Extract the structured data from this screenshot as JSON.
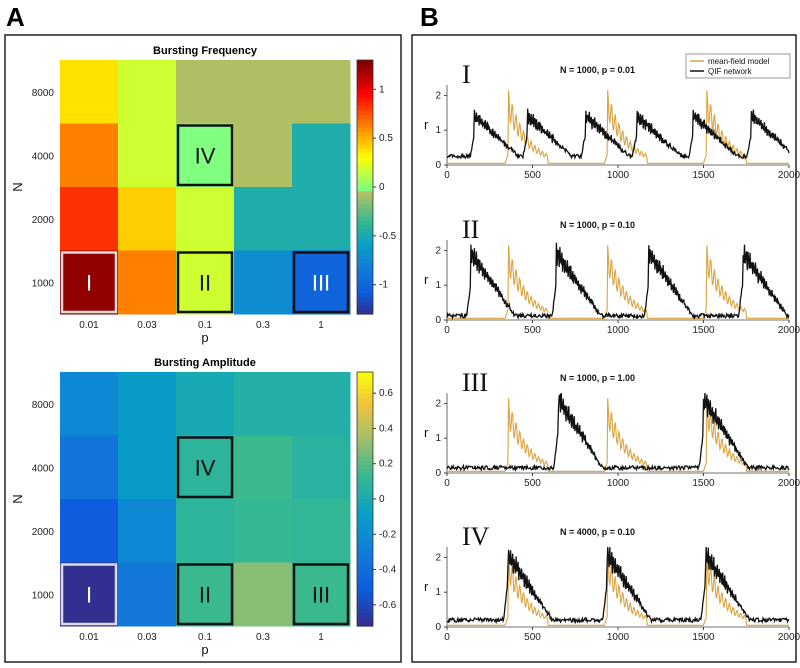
{
  "panels": {
    "A": "A",
    "B": "B"
  },
  "chart_data": [
    {
      "type": "heatmap",
      "title": "Bursting Frequency",
      "xlabel": "p",
      "ylabel": "N",
      "x_categories": [
        "0.01",
        "0.03",
        "0.1",
        "0.3",
        "1"
      ],
      "y_categories": [
        "8000",
        "4000",
        "2000",
        "1000"
      ],
      "values": [
        [
          0.4,
          0.2,
          -0.05,
          -0.05,
          -0.05
        ],
        [
          0.65,
          0.2,
          0.0,
          -0.05,
          -0.45
        ],
        [
          0.85,
          0.45,
          0.2,
          -0.45,
          -0.45
        ],
        [
          1.25,
          0.65,
          0.2,
          -0.7,
          -1.0
        ]
      ],
      "colorbar": {
        "min": -1.3,
        "max": 1.3,
        "ticks": [
          "1",
          "0.5",
          "0",
          "-0.5",
          "-1"
        ],
        "tick_values": [
          1,
          0.5,
          0,
          -0.5,
          -1
        ]
      },
      "boxes": [
        {
          "label": "IV",
          "row": 1,
          "col": 2,
          "border": "#111111"
        },
        {
          "label": "I",
          "row": 3,
          "col": 0,
          "border": "#dddddd"
        },
        {
          "label": "II",
          "row": 3,
          "col": 2,
          "border": "#111111"
        },
        {
          "label": "III",
          "row": 3,
          "col": 4,
          "border": "#111111"
        }
      ]
    },
    {
      "type": "heatmap",
      "title": "Bursting Amplitude",
      "xlabel": "p",
      "ylabel": "N",
      "x_categories": [
        "0.01",
        "0.03",
        "0.1",
        "0.3",
        "1"
      ],
      "y_categories": [
        "8000",
        "4000",
        "2000",
        "1000"
      ],
      "values": [
        [
          -0.22,
          -0.1,
          0.0,
          0.05,
          0.05
        ],
        [
          -0.35,
          -0.1,
          0.1,
          0.15,
          0.08
        ],
        [
          -0.5,
          -0.22,
          0.1,
          0.13,
          0.12
        ],
        [
          -0.7,
          -0.32,
          0.15,
          0.3,
          0.15
        ]
      ],
      "colorbar": {
        "min": -0.72,
        "max": 0.72,
        "ticks": [
          "0.6",
          "0.4",
          "0.2",
          "0",
          "-0.2",
          "-0.4",
          "-0.6"
        ],
        "tick_values": [
          0.6,
          0.4,
          0.2,
          0,
          -0.2,
          -0.4,
          -0.6
        ]
      },
      "boxes": [
        {
          "label": "IV",
          "row": 1,
          "col": 2,
          "border": "#111111"
        },
        {
          "label": "I",
          "row": 3,
          "col": 0,
          "border": "#dddddd"
        },
        {
          "label": "II",
          "row": 3,
          "col": 2,
          "border": "#111111"
        },
        {
          "label": "III",
          "row": 3,
          "col": 4,
          "border": "#111111"
        }
      ]
    },
    {
      "type": "line",
      "roman": "I",
      "annotation": "N = 1000, p = 0.01",
      "ylabel": "r",
      "xlim": [
        0,
        2000
      ],
      "ylim": [
        0,
        2.3
      ],
      "xticks": [
        "0",
        "500",
        "1000",
        "1500",
        "2000"
      ],
      "yticks": [
        "0",
        "1",
        "2"
      ],
      "legend": {
        "position": "top-right",
        "entries": [
          "mean-field model",
          "QIF network"
        ]
      },
      "series": [
        {
          "name": "mean-field model",
          "color": "#d9a441",
          "spikes": [
            360,
            940,
            1520
          ],
          "height": 2.1
        },
        {
          "name": "QIF network",
          "color": "#111111",
          "bursts": [
            160,
            470,
            810,
            1110,
            1440,
            1780
          ],
          "height": 1.3,
          "baseline": 0.25
        }
      ]
    },
    {
      "type": "line",
      "roman": "II",
      "annotation": "N = 1000, p = 0.10",
      "ylabel": "r",
      "xlim": [
        0,
        2000
      ],
      "ylim": [
        0,
        2.3
      ],
      "xticks": [
        "0",
        "500",
        "1000",
        "1500",
        "2000"
      ],
      "yticks": [
        "0",
        "1",
        "2"
      ],
      "series": [
        {
          "name": "mean-field model",
          "color": "#d9a441",
          "spikes": [
            360,
            940,
            1520
          ],
          "height": 2.1
        },
        {
          "name": "QIF network",
          "color": "#111111",
          "bursts": [
            140,
            640,
            1180,
            1730
          ],
          "height": 2.0,
          "baseline": 0.12
        }
      ]
    },
    {
      "type": "line",
      "roman": "III",
      "annotation": "N = 1000, p = 1.00",
      "ylabel": "r",
      "xlim": [
        0,
        2000
      ],
      "ylim": [
        0,
        2.3
      ],
      "xticks": [
        "0",
        "500",
        "1000",
        "1500",
        "2000"
      ],
      "yticks": [
        "0",
        "1",
        "2"
      ],
      "series": [
        {
          "name": "mean-field model",
          "color": "#d9a441",
          "spikes": [
            360,
            940,
            1520
          ],
          "height": 2.1
        },
        {
          "name": "QIF network",
          "color": "#111111",
          "bursts": [
            650,
            1500
          ],
          "height": 2.2,
          "baseline": 0.15
        }
      ]
    },
    {
      "type": "line",
      "roman": "IV",
      "annotation": "N = 4000, p = 0.10",
      "ylabel": "r",
      "xlim": [
        0,
        2000
      ],
      "ylim": [
        0,
        2.3
      ],
      "xticks": [
        "0",
        "500",
        "1000",
        "1500",
        "2000"
      ],
      "yticks": [
        "0",
        "1",
        "2"
      ],
      "series": [
        {
          "name": "mean-field model",
          "color": "#d9a441",
          "spikes": [
            360,
            940,
            1520
          ],
          "height": 2.1
        },
        {
          "name": "QIF network",
          "color": "#111111",
          "bursts": [
            355,
            935,
            1510
          ],
          "height": 2.1,
          "baseline": 0.2
        }
      ]
    }
  ]
}
